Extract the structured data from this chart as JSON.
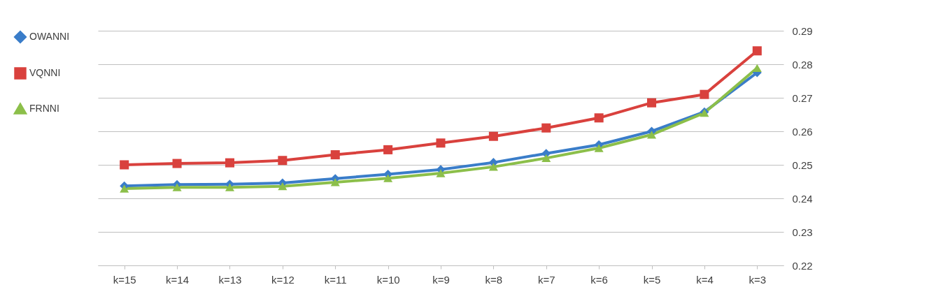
{
  "chart_data": {
    "type": "line",
    "categories": [
      "k=15",
      "k=14",
      "k=13",
      "k=12",
      "k=11",
      "k=10",
      "k=9",
      "k=8",
      "k=7",
      "k=6",
      "k=5",
      "k=4",
      "k=3"
    ],
    "series": [
      {
        "name": "OWANNI",
        "color": "#3a7dc9",
        "marker": "diamond",
        "values": [
          0.2437,
          0.2441,
          0.2442,
          0.2446,
          0.2459,
          0.2472,
          0.2486,
          0.2507,
          0.2534,
          0.256,
          0.26,
          0.2658,
          0.2775
        ]
      },
      {
        "name": "VQNNI",
        "color": "#d9413d",
        "marker": "square",
        "values": [
          0.25,
          0.2504,
          0.2506,
          0.2513,
          0.253,
          0.2545,
          0.2565,
          0.2585,
          0.261,
          0.264,
          0.2685,
          0.271,
          0.284
        ]
      },
      {
        "name": "FRNNI",
        "color": "#8cbf4a",
        "marker": "triangle",
        "values": [
          0.2429,
          0.2433,
          0.2433,
          0.2436,
          0.2448,
          0.246,
          0.2475,
          0.2494,
          0.252,
          0.255,
          0.259,
          0.2655,
          0.2789
        ]
      }
    ],
    "ylim": [
      0.22,
      0.29
    ],
    "yticks": [
      0.22,
      0.23,
      0.24,
      0.25,
      0.26,
      0.27,
      0.28,
      0.29
    ],
    "grid": "y",
    "legend": "left",
    "line_style": "solid"
  }
}
